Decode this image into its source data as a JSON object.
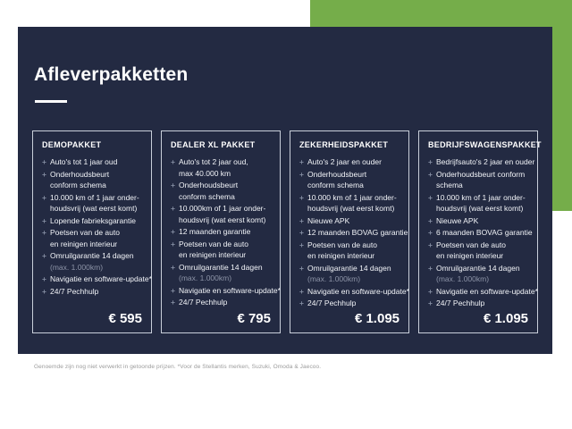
{
  "page": {
    "title": "Afleverpakketten",
    "footnote": "Genoemde zijn nog niet verwerkt in getoonde prijzen. *Voor de Stellantis merken, Suzuki, Omoda & Jaecoo."
  },
  "colors": {
    "accent_green": "#75ad4a",
    "panel_navy": "#232a42",
    "muted_text": "#8d94a7",
    "footnote_gray": "#9b9b9b"
  },
  "icons": {
    "bullet": "+"
  },
  "packages": [
    {
      "name": "DEMOPAKKET",
      "price": "€ 595",
      "items": [
        {
          "lines": [
            "Auto's tot 1 jaar oud"
          ]
        },
        {
          "lines": [
            "Onderhoudsbeurt",
            "conform schema"
          ]
        },
        {
          "lines": [
            "10.000 km of 1 jaar onder-",
            "houdsvrij (wat eerst komt)"
          ]
        },
        {
          "lines": [
            "Lopende fabrieksgarantie"
          ]
        },
        {
          "lines": [
            "Poetsen van de auto",
            "en reinigen interieur"
          ]
        },
        {
          "lines": [
            "Omruilgarantie 14 dagen"
          ],
          "muted": [
            "(max. 1.000km)"
          ]
        },
        {
          "lines": [
            "Navigatie en software-update*"
          ]
        },
        {
          "lines": [
            "24/7 Pechhulp"
          ]
        }
      ]
    },
    {
      "name": "DEALER XL PAKKET",
      "price": "€ 795",
      "items": [
        {
          "lines": [
            "Auto's tot 2 jaar oud,",
            "max 40.000 km"
          ]
        },
        {
          "lines": [
            "Onderhoudsbeurt",
            "conform schema"
          ]
        },
        {
          "lines": [
            "10.000km of 1 jaar onder-",
            "houdsvrij (wat eerst komt)"
          ]
        },
        {
          "lines": [
            "12 maanden garantie"
          ]
        },
        {
          "lines": [
            "Poetsen van de auto",
            "en reinigen interieur"
          ]
        },
        {
          "lines": [
            "Omruilgarantie 14 dagen"
          ],
          "muted": [
            "(max. 1.000km)"
          ]
        },
        {
          "lines": [
            "Navigatie en software-update*"
          ]
        },
        {
          "lines": [
            "24/7 Pechhulp"
          ]
        }
      ]
    },
    {
      "name": "ZEKERHEIDSPAKKET",
      "price": "€ 1.095",
      "items": [
        {
          "lines": [
            "Auto's 2 jaar en ouder"
          ]
        },
        {
          "lines": [
            "Onderhoudsbeurt",
            "conform schema"
          ]
        },
        {
          "lines": [
            "10.000 km of 1 jaar onder-",
            "houdsvrij (wat eerst komt)"
          ]
        },
        {
          "lines": [
            "Nieuwe APK"
          ]
        },
        {
          "lines": [
            "12 maanden BOVAG garantie"
          ]
        },
        {
          "lines": [
            "Poetsen van de auto",
            "en reinigen interieur"
          ]
        },
        {
          "lines": [
            "Omruilgarantie 14 dagen"
          ],
          "muted": [
            "(max. 1.000km)"
          ]
        },
        {
          "lines": [
            "Navigatie en software-update*"
          ]
        },
        {
          "lines": [
            "24/7 Pechhulp"
          ]
        }
      ]
    },
    {
      "name": "BEDRIJFSWAGENSPAKKET",
      "price": "€ 1.095",
      "items": [
        {
          "lines": [
            "Bedrijfsauto's 2 jaar en ouder"
          ]
        },
        {
          "lines": [
            "Onderhoudsbeurt conform",
            "schema"
          ]
        },
        {
          "lines": [
            "10.000 km of 1 jaar onder-",
            "houdsvrij (wat eerst komt)"
          ]
        },
        {
          "lines": [
            "Nieuwe APK"
          ]
        },
        {
          "lines": [
            "6 maanden BOVAG garantie"
          ]
        },
        {
          "lines": [
            "Poetsen van de auto",
            "en reinigen interieur"
          ]
        },
        {
          "lines": [
            "Omruilgarantie 14 dagen"
          ],
          "muted": [
            "(max. 1.000km)"
          ]
        },
        {
          "lines": [
            "Navigatie en software-update*"
          ]
        },
        {
          "lines": [
            "24/7 Pechhulp"
          ]
        }
      ]
    }
  ]
}
